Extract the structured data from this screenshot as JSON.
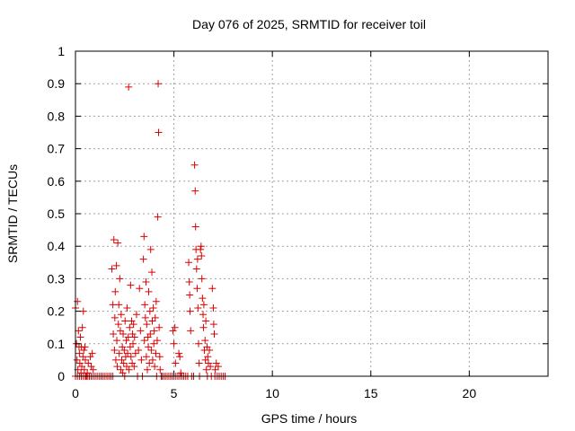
{
  "chart_data": {
    "type": "scatter",
    "title": "Day 076 of 2025, SRMTID for receiver toil",
    "xlabel": "GPS time / hours",
    "ylabel": "SRMTID / TECUs",
    "xlim": [
      0,
      24
    ],
    "ylim": [
      0,
      1
    ],
    "x_ticks": [
      0,
      5,
      10,
      15,
      20
    ],
    "x_tick_labels": [
      "0",
      "5",
      "10",
      "15",
      "20"
    ],
    "y_ticks": [
      0,
      0.1,
      0.2,
      0.3,
      0.4,
      0.5,
      0.6,
      0.7,
      0.8,
      0.9,
      1
    ],
    "y_tick_labels": [
      "0",
      "0.1",
      "0.2",
      "0.3",
      "0.4",
      "0.5",
      "0.6",
      "0.7",
      "0.8",
      "0.9",
      "1"
    ],
    "grid": true,
    "marker": "plus",
    "color": "#dd0000",
    "series": [
      {
        "name": "SRMTID",
        "points": [
          [
            0.0,
            0.21
          ],
          [
            0.05,
            0.1
          ],
          [
            0.08,
            0.05
          ],
          [
            0.1,
            0.23
          ],
          [
            0.12,
            0.02
          ],
          [
            0.15,
            0.14
          ],
          [
            0.18,
            0.09
          ],
          [
            0.2,
            0.07
          ],
          [
            0.22,
            0.04
          ],
          [
            0.25,
            0.12
          ],
          [
            0.28,
            0.01
          ],
          [
            0.3,
            0.09
          ],
          [
            0.32,
            0.03
          ],
          [
            0.35,
            0.15
          ],
          [
            0.38,
            0.06
          ],
          [
            0.4,
            0.2
          ],
          [
            0.42,
            0.08
          ],
          [
            0.45,
            0.02
          ],
          [
            0.48,
            0.09
          ],
          [
            0.5,
            0.05
          ],
          [
            0.55,
            0.0
          ],
          [
            0.6,
            0.01
          ],
          [
            0.65,
            0.04
          ],
          [
            0.7,
            0.0
          ],
          [
            0.75,
            0.06
          ],
          [
            0.8,
            0.03
          ],
          [
            0.85,
            0.07
          ],
          [
            0.9,
            0.02
          ],
          [
            0.0,
            0.0
          ],
          [
            0.1,
            0.0
          ],
          [
            0.2,
            0.0
          ],
          [
            0.3,
            0.0
          ],
          [
            0.4,
            0.0
          ],
          [
            0.5,
            0.0
          ],
          [
            0.6,
            0.0
          ],
          [
            0.7,
            0.0
          ],
          [
            0.8,
            0.0
          ],
          [
            0.9,
            0.0
          ],
          [
            1.0,
            0.0
          ],
          [
            1.1,
            0.0
          ],
          [
            1.2,
            0.0
          ],
          [
            1.3,
            0.0
          ],
          [
            1.4,
            0.0
          ],
          [
            1.5,
            0.0
          ],
          [
            1.6,
            0.0
          ],
          [
            1.7,
            0.0
          ],
          [
            1.8,
            0.0
          ],
          [
            1.9,
            0.0
          ],
          [
            1.85,
            0.33
          ],
          [
            1.9,
            0.22
          ],
          [
            1.92,
            0.13
          ],
          [
            1.95,
            0.42
          ],
          [
            1.98,
            0.08
          ],
          [
            2.0,
            0.18
          ],
          [
            2.02,
            0.26
          ],
          [
            2.05,
            0.05
          ],
          [
            2.08,
            0.34
          ],
          [
            2.1,
            0.11
          ],
          [
            2.12,
            0.03
          ],
          [
            2.15,
            0.41
          ],
          [
            2.18,
            0.16
          ],
          [
            2.2,
            0.22
          ],
          [
            2.22,
            0.07
          ],
          [
            2.25,
            0.3
          ],
          [
            2.28,
            0.14
          ],
          [
            2.3,
            0.02
          ],
          [
            2.32,
            0.19
          ],
          [
            2.35,
            0.05
          ],
          [
            2.38,
            0.09
          ],
          [
            2.4,
            0.01
          ],
          [
            2.42,
            0.13
          ],
          [
            2.45,
            0.04
          ],
          [
            2.48,
            0.08
          ],
          [
            2.5,
            0.0
          ],
          [
            2.52,
            0.17
          ],
          [
            2.55,
            0.06
          ],
          [
            2.58,
            0.11
          ],
          [
            2.6,
            0.03
          ],
          [
            2.62,
            0.21
          ],
          [
            2.65,
            0.07
          ],
          [
            2.68,
            0.12
          ],
          [
            2.7,
            0.89
          ],
          [
            2.72,
            0.02
          ],
          [
            2.75,
            0.15
          ],
          [
            2.78,
            0.09
          ],
          [
            2.8,
            0.28
          ],
          [
            2.82,
            0.06
          ],
          [
            2.85,
            0.17
          ],
          [
            2.88,
            0.04
          ],
          [
            2.9,
            0.13
          ],
          [
            2.92,
            0.1
          ],
          [
            2.95,
            0.16
          ],
          [
            2.98,
            0.03
          ],
          [
            3.0,
            0.12
          ],
          [
            3.05,
            0.07
          ],
          [
            3.1,
            0.19
          ],
          [
            3.15,
            0.0
          ],
          [
            3.2,
            0.08
          ],
          [
            3.25,
            0.27
          ],
          [
            3.3,
            0.14
          ],
          [
            3.35,
            0.05
          ],
          [
            3.4,
            0.0
          ],
          [
            3.45,
            0.36
          ],
          [
            3.48,
            0.43
          ],
          [
            3.5,
            0.11
          ],
          [
            3.52,
            0.22
          ],
          [
            3.55,
            0.18
          ],
          [
            3.58,
            0.29
          ],
          [
            3.6,
            0.06
          ],
          [
            3.62,
            0.16
          ],
          [
            3.65,
            0.02
          ],
          [
            3.68,
            0.12
          ],
          [
            3.7,
            0.09
          ],
          [
            3.72,
            0.26
          ],
          [
            3.75,
            0.04
          ],
          [
            3.78,
            0.2
          ],
          [
            3.8,
            0.13
          ],
          [
            3.82,
            0.39
          ],
          [
            3.85,
            0.08
          ],
          [
            3.88,
            0.32
          ],
          [
            3.9,
            0.17
          ],
          [
            3.92,
            0.05
          ],
          [
            3.95,
            0.21
          ],
          [
            3.98,
            0.1
          ],
          [
            4.0,
            0.14
          ],
          [
            4.02,
            0.03
          ],
          [
            4.05,
            0.18
          ],
          [
            4.08,
            0.07
          ],
          [
            4.1,
            0.23
          ],
          [
            4.12,
            0.0
          ],
          [
            4.15,
            0.11
          ],
          [
            4.18,
            0.49
          ],
          [
            4.2,
            0.9
          ],
          [
            4.22,
            0.75
          ],
          [
            4.25,
            0.15
          ],
          [
            4.28,
            0.06
          ],
          [
            4.3,
            0.02
          ],
          [
            4.35,
            0.0
          ],
          [
            4.4,
            0.0
          ],
          [
            4.5,
            0.0
          ],
          [
            4.6,
            0.0
          ],
          [
            4.7,
            0.0
          ],
          [
            4.8,
            0.0
          ],
          [
            4.9,
            0.0
          ],
          [
            5.0,
            0.0
          ],
          [
            4.95,
            0.14
          ],
          [
            5.0,
            0.1
          ],
          [
            5.05,
            0.15
          ],
          [
            5.08,
            0.04
          ],
          [
            5.1,
            0.0
          ],
          [
            5.2,
            0.0
          ],
          [
            5.3,
            0.0
          ],
          [
            5.25,
            0.07
          ],
          [
            5.3,
            0.06
          ],
          [
            5.35,
            0.01
          ],
          [
            5.4,
            0.0
          ],
          [
            5.5,
            0.0
          ],
          [
            5.6,
            0.0
          ],
          [
            5.7,
            0.0
          ],
          [
            5.75,
            0.35
          ],
          [
            5.78,
            0.29
          ],
          [
            5.8,
            0.25
          ],
          [
            5.82,
            0.2
          ],
          [
            5.85,
            0.14
          ],
          [
            5.9,
            0.0
          ],
          [
            6.0,
            0.0
          ],
          [
            6.05,
            0.65
          ],
          [
            6.08,
            0.57
          ],
          [
            6.1,
            0.46
          ],
          [
            6.12,
            0.39
          ],
          [
            6.15,
            0.33
          ],
          [
            6.18,
            0.27
          ],
          [
            6.2,
            0.36
          ],
          [
            6.22,
            0.21
          ],
          [
            6.25,
            0.1
          ],
          [
            6.28,
            0.04
          ],
          [
            6.3,
            0.0
          ],
          [
            6.35,
            0.39
          ],
          [
            6.38,
            0.4
          ],
          [
            6.4,
            0.37
          ],
          [
            6.42,
            0.3
          ],
          [
            6.45,
            0.24
          ],
          [
            6.48,
            0.19
          ],
          [
            6.5,
            0.15
          ],
          [
            6.52,
            0.22
          ],
          [
            6.55,
            0.08
          ],
          [
            6.58,
            0.11
          ],
          [
            6.6,
            0.05
          ],
          [
            6.62,
            0.17
          ],
          [
            6.65,
            0.02
          ],
          [
            6.68,
            0.09
          ],
          [
            6.7,
            0.0
          ],
          [
            6.72,
            0.06
          ],
          [
            6.75,
            0.04
          ],
          [
            6.8,
            0.08
          ],
          [
            6.85,
            0.03
          ],
          [
            6.9,
            0.0
          ],
          [
            6.95,
            0.27
          ],
          [
            7.0,
            0.21
          ],
          [
            7.02,
            0.16
          ],
          [
            7.05,
            0.13
          ],
          [
            7.08,
            0.0
          ],
          [
            7.1,
            0.02
          ],
          [
            7.15,
            0.04
          ],
          [
            7.2,
            0.0
          ],
          [
            7.25,
            0.03
          ],
          [
            7.3,
            0.0
          ],
          [
            7.4,
            0.0
          ],
          [
            7.5,
            0.0
          ],
          [
            7.6,
            0.0
          ]
        ]
      }
    ]
  }
}
